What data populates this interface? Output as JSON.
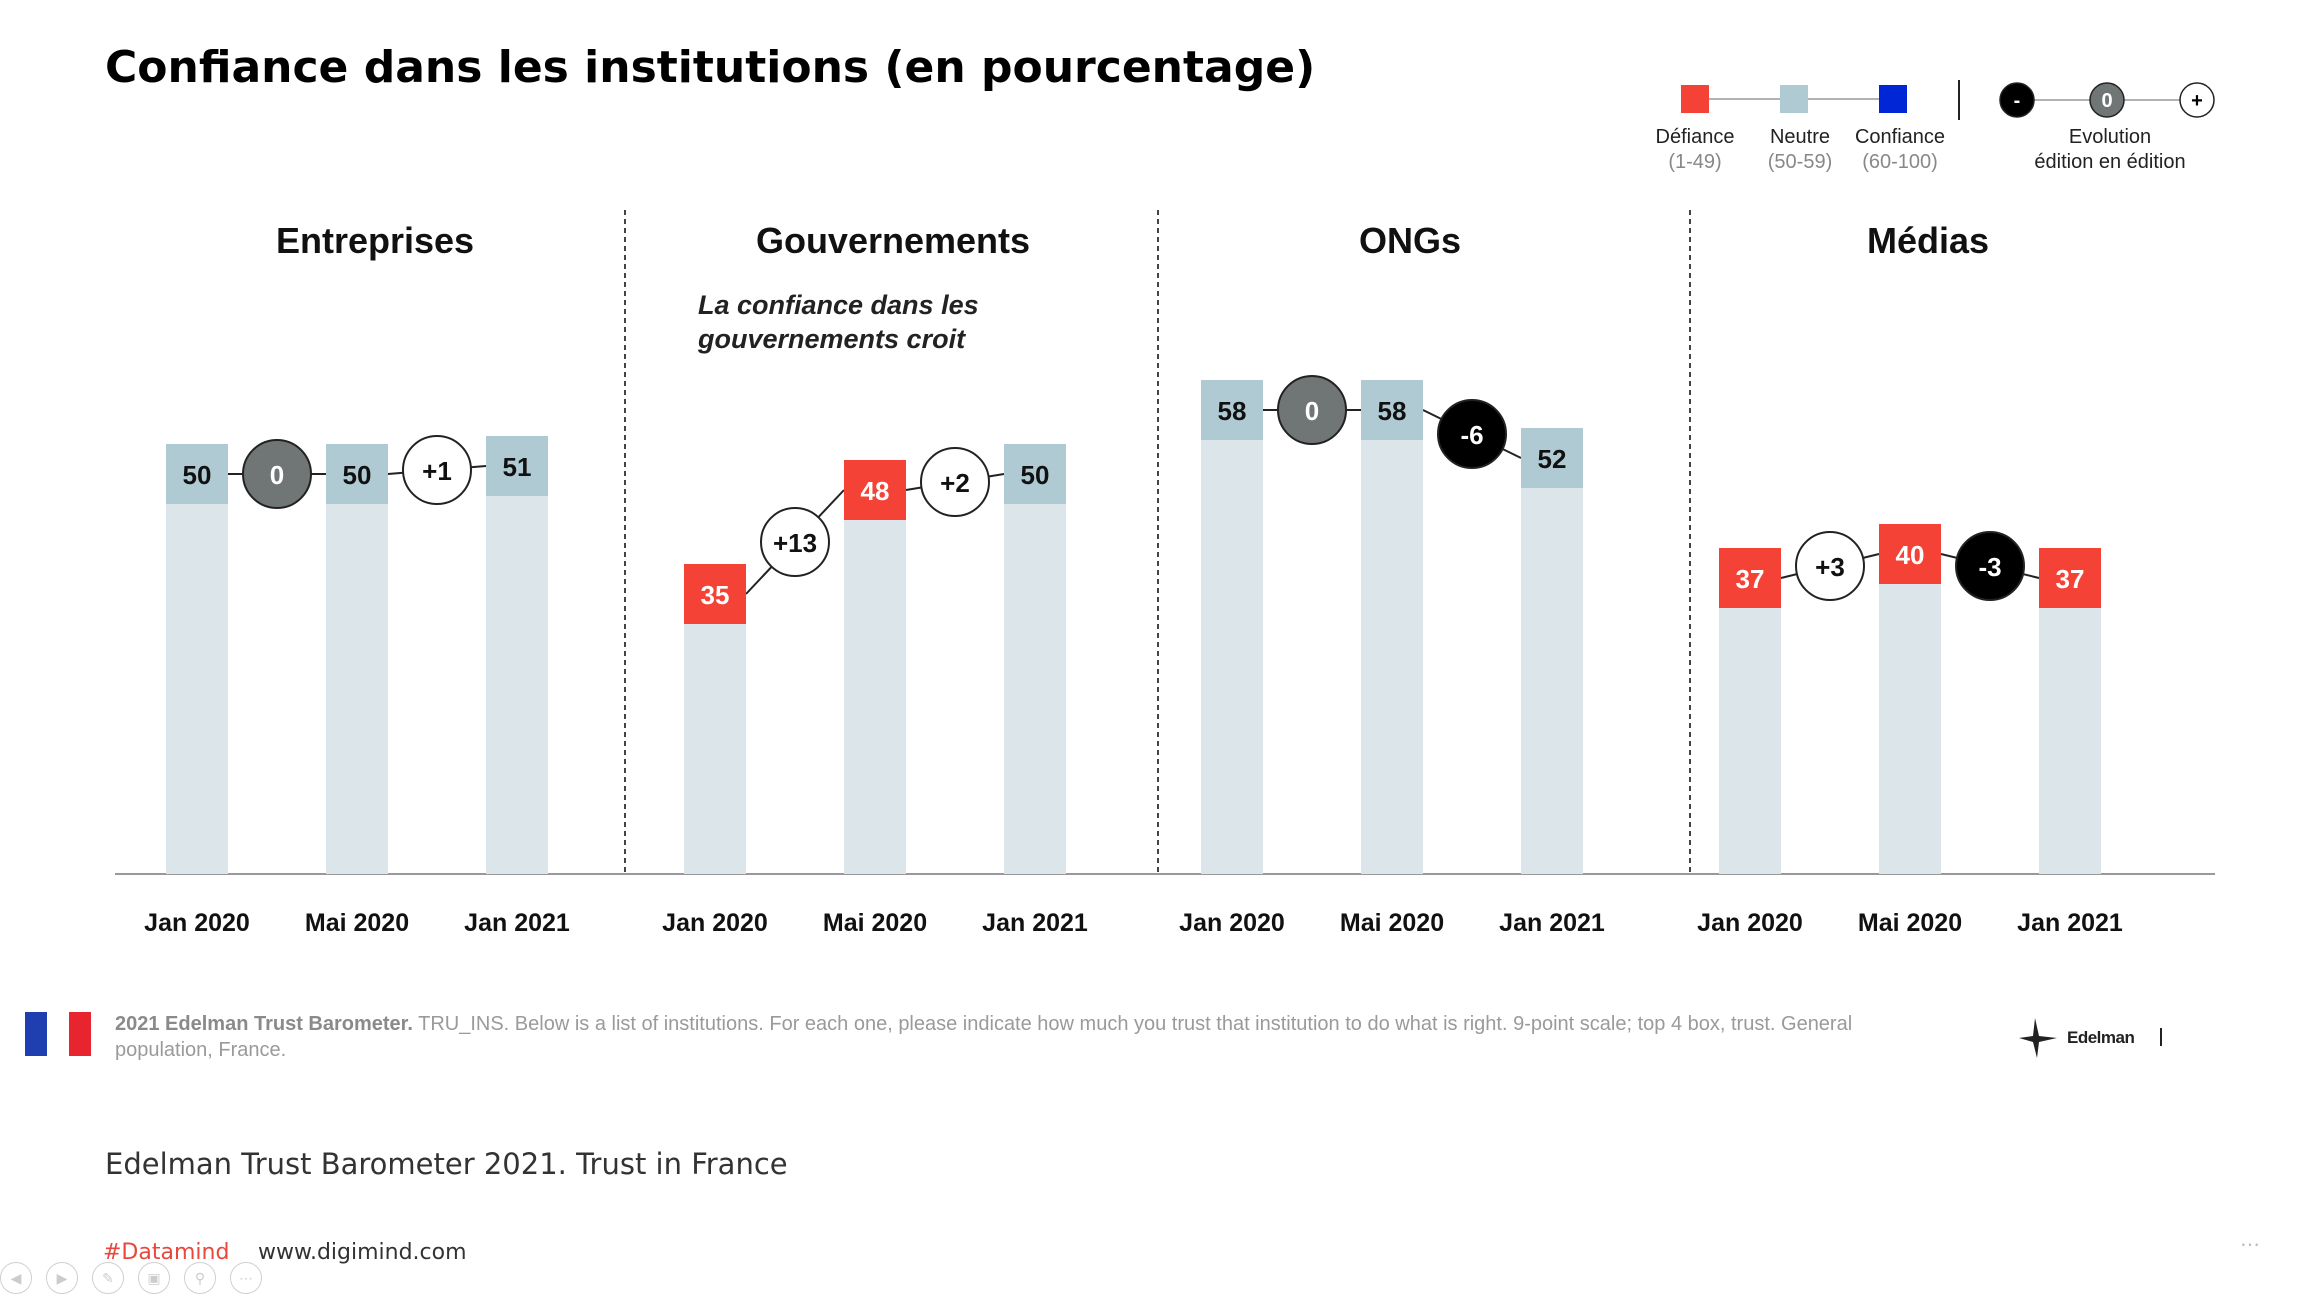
{
  "title": "Confiance dans les institutions (en pourcentage)",
  "legend": {
    "defiance": {
      "label": "Défiance",
      "range": "(1-49)",
      "color": "#f44336"
    },
    "neutre": {
      "label": "Neutre",
      "range": "(50-59)",
      "color": "#b0cad3"
    },
    "confiance": {
      "label": "Confiance",
      "range": "(60-100)",
      "color": "#0026d6"
    },
    "evolution": {
      "minus": "-",
      "zero": "0",
      "plus": "+",
      "label_line1": "Evolution",
      "label_line2": "édition en édition"
    }
  },
  "annotation": {
    "line1": "La confiance dans les",
    "line2": "gouvernements croit"
  },
  "chart_data": {
    "type": "bar",
    "categories": [
      "Jan 2020",
      "Mai 2020",
      "Jan 2021"
    ],
    "ylim": [
      0,
      100
    ],
    "panels": [
      {
        "name": "Entreprises",
        "values": [
          50,
          50,
          51
        ],
        "changes": [
          "0",
          "+1"
        ]
      },
      {
        "name": "Gouvernements",
        "values": [
          35,
          48,
          50
        ],
        "changes": [
          "+13",
          "+2"
        ]
      },
      {
        "name": "ONGs",
        "values": [
          58,
          58,
          52
        ],
        "changes": [
          "0",
          "-6"
        ]
      },
      {
        "name": "Médias",
        "values": [
          37,
          40,
          37
        ],
        "changes": [
          "+3",
          "-3"
        ]
      }
    ]
  },
  "footnote": {
    "bold": "2021 Edelman Trust Barometer.",
    "text": " TRU_INS. Below is a list of institutions. For each one, please indicate how much you trust that institution to do what is right. 9-point scale; top 4 box, trust. General population, France."
  },
  "logo_text": "Edelman",
  "source": "Edelman Trust Barometer 2021. Trust in France",
  "hashtag": "#Datamind",
  "website": "www.digimind.com",
  "colors": {
    "defiance": "#f44336",
    "neutre": "#b0cad3",
    "shadow": "#dce6ea",
    "zero": "#6f7675",
    "negative": "#000000",
    "positive": "#ffffff"
  }
}
